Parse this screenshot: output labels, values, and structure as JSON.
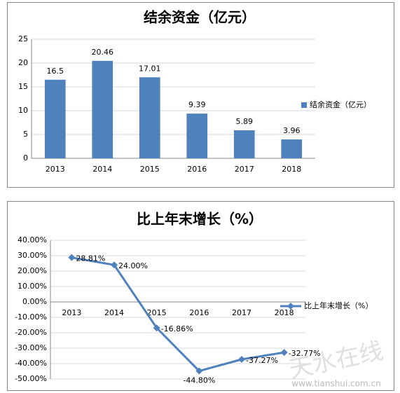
{
  "chart_data": [
    {
      "type": "bar",
      "title": "结余资金（亿元）",
      "categories": [
        "2013",
        "2014",
        "2015",
        "2016",
        "2017",
        "2018"
      ],
      "series": [
        {
          "name": "结余资金（亿元）",
          "color": "#4f81bd",
          "values": [
            16.5,
            20.46,
            17.01,
            9.39,
            5.89,
            3.96
          ]
        }
      ],
      "ylim": [
        0,
        25
      ],
      "yticks": [
        0,
        5,
        10,
        15,
        20,
        25
      ],
      "grid": true,
      "legend": "right"
    },
    {
      "type": "line",
      "title": "比上年末增长（%）",
      "categories": [
        "2013",
        "2014",
        "2015",
        "2016",
        "2017",
        "2018"
      ],
      "series": [
        {
          "name": "比上年末增长（%）",
          "color": "#4f81bd",
          "values": [
            28.81,
            24.0,
            -16.86,
            -44.8,
            -37.27,
            -32.77
          ],
          "value_labels": [
            "28.81%",
            "24.00%",
            "-16.86%",
            "-44.80%",
            "-37.27%",
            "-32.77%"
          ]
        }
      ],
      "ylim": [
        -50,
        40
      ],
      "yticks": [
        {
          "value": -50,
          "label": "-50.00%"
        },
        {
          "value": -40,
          "label": "-40.00%"
        },
        {
          "value": -30,
          "label": "-30.00%"
        },
        {
          "value": -20,
          "label": "-20.00%"
        },
        {
          "value": -10,
          "label": "-10.00%"
        },
        {
          "value": 0,
          "label": "0.00%"
        },
        {
          "value": 10,
          "label": "10.00%"
        },
        {
          "value": 20,
          "label": "20.00%"
        },
        {
          "value": 30,
          "label": "30.00%"
        },
        {
          "value": 40,
          "label": "40.00%"
        }
      ],
      "grid": true,
      "legend": "right"
    }
  ],
  "watermark": {
    "name": "天水在线",
    "url": "www.tianshui.com.cn"
  }
}
